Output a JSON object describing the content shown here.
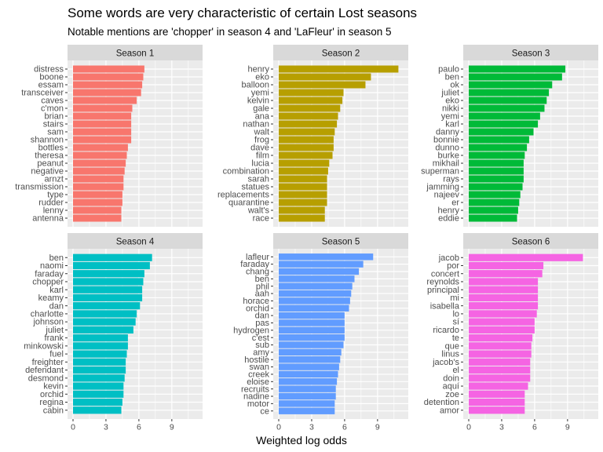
{
  "title": "Some words are very characteristic of certain Lost seasons",
  "subtitle": "Notable mentions are 'chopper' in season 4 and 'LaFleur' in season 5",
  "chart_data": {
    "type": "bar",
    "orientation": "horizontal",
    "facet_layout": "3 columns x 2 rows",
    "xlabel": "Weighted log odds",
    "ylabel": "",
    "xlim": [
      -0.5,
      11.8
    ],
    "x_ticks": [
      0,
      3,
      6,
      9
    ],
    "grid": true,
    "legend": "none",
    "panels": [
      {
        "strip": "Season 1",
        "color": "#F8766D",
        "words": [
          "distress",
          "boone",
          "essam",
          "transceiver",
          "caves",
          "c'mon",
          "brian",
          "stairs",
          "sam",
          "shannon",
          "bottles",
          "theresa",
          "peanut",
          "negative",
          "arnzt",
          "transmission",
          "type",
          "rudder",
          "lenny",
          "antenna"
        ],
        "values": [
          6.5,
          6.4,
          6.3,
          6.2,
          5.8,
          5.4,
          5.3,
          5.3,
          5.3,
          5.3,
          5.0,
          4.9,
          4.8,
          4.7,
          4.6,
          4.6,
          4.5,
          4.5,
          4.4,
          4.4
        ]
      },
      {
        "strip": "Season 2",
        "color": "#B79F00",
        "words": [
          "henry",
          "eko",
          "balloon",
          "yemi",
          "kelvin",
          "gale",
          "ana",
          "nathan",
          "walt",
          "frog",
          "dave",
          "film",
          "lucia",
          "combination",
          "sarah",
          "statues",
          "replacements",
          "quarantine",
          "walt's",
          "race"
        ],
        "values": [
          10.9,
          8.4,
          7.9,
          5.9,
          5.8,
          5.6,
          5.4,
          5.3,
          5.1,
          5.0,
          5.0,
          4.9,
          4.6,
          4.5,
          4.4,
          4.4,
          4.4,
          4.4,
          4.2,
          4.2
        ]
      },
      {
        "strip": "Season 3",
        "color": "#00BA38",
        "words": [
          "paulo",
          "ben",
          "ok",
          "juliet",
          "eko",
          "nikki",
          "yemi",
          "karl",
          "danny",
          "bonnie",
          "dunno",
          "burke",
          "mikhail",
          "superman",
          "rays",
          "jamming",
          "najeev",
          "er",
          "henry",
          "eddie"
        ],
        "values": [
          8.8,
          8.5,
          7.6,
          7.3,
          7.1,
          6.9,
          6.5,
          6.3,
          5.9,
          5.5,
          5.3,
          5.1,
          5.0,
          5.0,
          5.0,
          4.9,
          4.7,
          4.6,
          4.5,
          4.4
        ]
      },
      {
        "strip": "Season 4",
        "color": "#00BFC4",
        "words": [
          "ben",
          "naomi",
          "faraday",
          "chopper",
          "karl",
          "keamy",
          "dan",
          "charlotte",
          "johnson",
          "juliet",
          "frank",
          "minkowski",
          "fuel",
          "freighter",
          "defendant",
          "desmond",
          "kevin",
          "orchid",
          "regina",
          "cabin"
        ],
        "values": [
          7.2,
          7.0,
          6.5,
          6.4,
          6.3,
          6.3,
          6.1,
          5.8,
          5.7,
          5.5,
          5.0,
          5.0,
          4.9,
          4.8,
          4.8,
          4.7,
          4.6,
          4.6,
          4.5,
          4.4
        ]
      },
      {
        "strip": "Season 5",
        "color": "#619CFF",
        "words": [
          "lafleur",
          "faraday",
          "chang",
          "ben",
          "phil",
          "aah",
          "horace",
          "orchid",
          "dan",
          "pas",
          "hydrogen",
          "c'est",
          "sub",
          "amy",
          "hostile",
          "swan",
          "creek",
          "eloise",
          "recruits",
          "nadine",
          "motor",
          "ce"
        ],
        "values": [
          8.6,
          7.7,
          7.3,
          6.9,
          6.7,
          6.6,
          6.5,
          6.4,
          6.0,
          6.0,
          6.0,
          6.0,
          5.9,
          5.7,
          5.6,
          5.5,
          5.4,
          5.3,
          5.2,
          5.2,
          5.1,
          5.1
        ]
      },
      {
        "strip": "Season 6",
        "color": "#F564E3",
        "words": [
          "jacob",
          "por",
          "concert",
          "reynolds",
          "principal",
          "mi",
          "isabella",
          "lo",
          "sí",
          "ricardo",
          "te",
          "que",
          "linus",
          "jacob's",
          "el",
          "doin",
          "aquí",
          "zoe",
          "detention",
          "amor"
        ],
        "values": [
          10.4,
          6.8,
          6.7,
          6.3,
          6.3,
          6.3,
          6.3,
          6.2,
          6.0,
          6.0,
          5.8,
          5.7,
          5.7,
          5.6,
          5.6,
          5.6,
          5.4,
          5.1,
          5.1,
          5.1
        ]
      }
    ]
  }
}
